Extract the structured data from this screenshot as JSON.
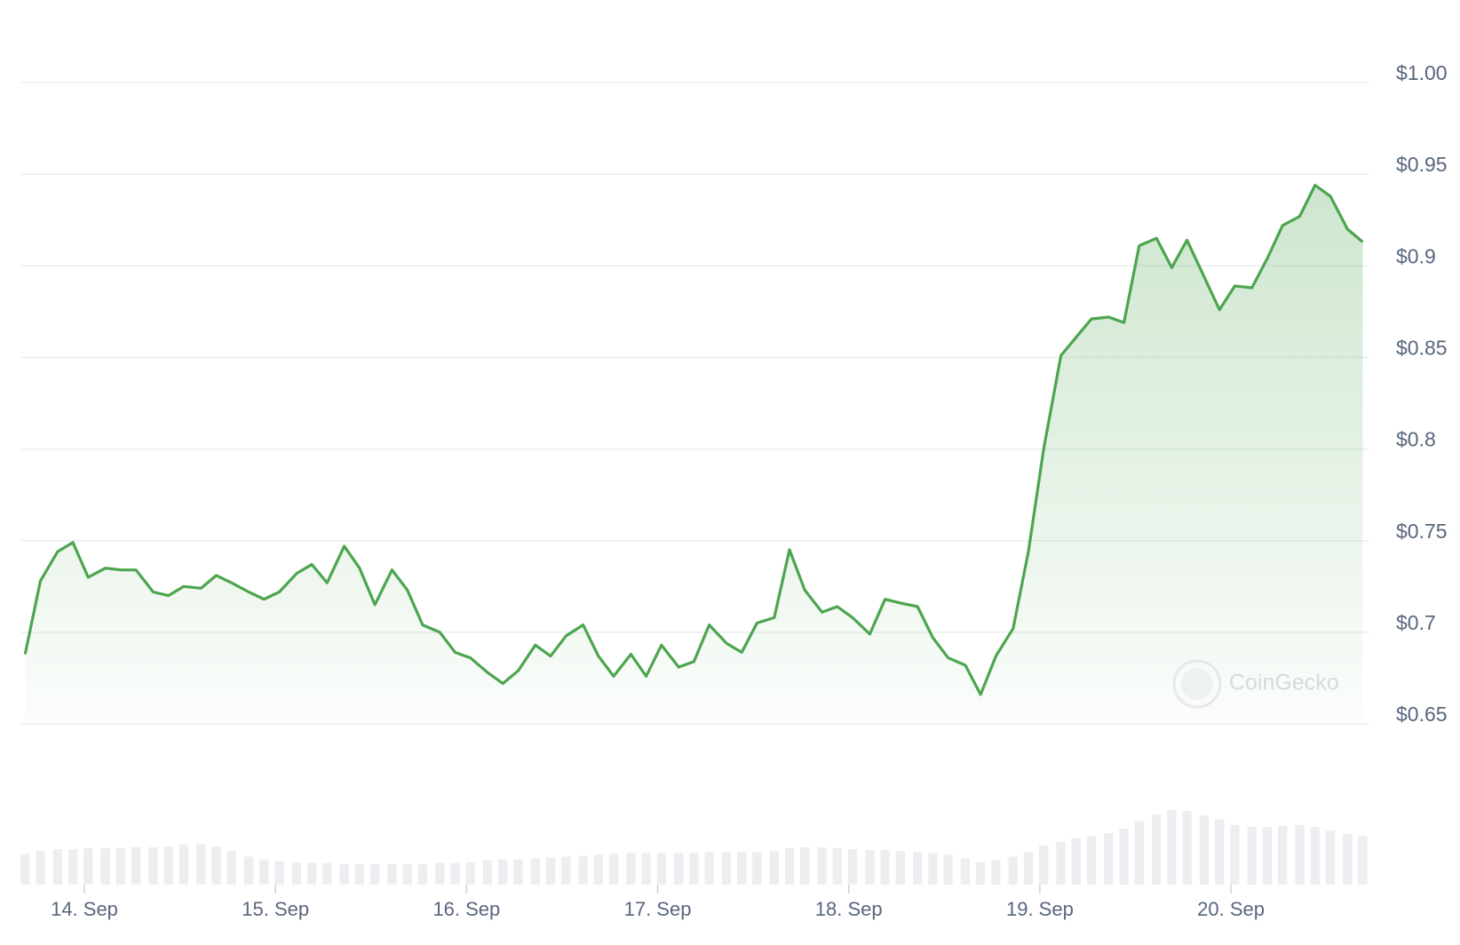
{
  "chart_data": {
    "type": "line",
    "x": [
      13.69,
      13.77,
      13.86,
      13.94,
      14.02,
      14.11,
      14.19,
      14.27,
      14.36,
      14.44,
      14.52,
      14.61,
      14.69,
      14.77,
      14.86,
      14.94,
      15.02,
      15.11,
      15.19,
      15.27,
      15.36,
      15.44,
      15.52,
      15.61,
      15.69,
      15.77,
      15.86,
      15.94,
      16.02,
      16.11,
      16.19,
      16.27,
      16.36,
      16.44,
      16.52,
      16.61,
      16.69,
      16.77,
      16.86,
      16.94,
      17.02,
      17.11,
      17.19,
      17.27,
      17.36,
      17.44,
      17.52,
      17.61,
      17.69,
      17.77,
      17.86,
      17.94,
      18.02,
      18.11,
      18.19,
      18.27,
      18.36,
      18.44,
      18.52,
      18.61,
      18.69,
      18.77,
      18.86,
      18.94,
      19.02,
      19.11,
      19.19,
      19.27,
      19.36,
      19.44,
      19.52,
      19.61,
      19.69,
      19.77,
      19.86,
      19.94,
      20.02,
      20.11,
      20.19,
      20.27,
      20.36,
      20.44,
      20.52,
      20.61,
      20.69
    ],
    "series": [
      {
        "color": "#4ca54f",
        "values": [
          0.688,
          0.728,
          0.744,
          0.749,
          0.73,
          0.735,
          0.734,
          0.734,
          0.722,
          0.72,
          0.725,
          0.724,
          0.731,
          0.727,
          0.722,
          0.718,
          0.722,
          0.732,
          0.737,
          0.727,
          0.747,
          0.735,
          0.715,
          0.734,
          0.723,
          0.704,
          0.7,
          0.689,
          0.686,
          0.678,
          0.672,
          0.679,
          0.693,
          0.687,
          0.698,
          0.704,
          0.687,
          0.676,
          0.688,
          0.676,
          0.693,
          0.681,
          0.684,
          0.704,
          0.694,
          0.689,
          0.705,
          0.708,
          0.745,
          0.723,
          0.711,
          0.714,
          0.708,
          0.699,
          0.718,
          0.716,
          0.714,
          0.697,
          0.686,
          0.682,
          0.666,
          0.687,
          0.702,
          0.744,
          0.8,
          0.851,
          0.861,
          0.871,
          0.872,
          0.869,
          0.911,
          0.915,
          0.899,
          0.914,
          0.894,
          0.876,
          0.889,
          0.888,
          0.904,
          0.922,
          0.927,
          0.944,
          0.938,
          0.92,
          0.913
        ]
      }
    ],
    "volume_values": [
      33,
      36,
      38,
      38,
      39,
      39,
      39,
      40,
      40,
      41,
      43,
      44,
      41,
      36,
      30,
      27,
      25,
      24,
      23,
      23,
      22,
      22,
      22,
      22,
      22,
      22,
      23,
      23,
      24,
      26,
      27,
      27,
      28,
      29,
      30,
      31,
      32,
      33,
      34,
      34,
      34,
      34,
      34,
      35,
      35,
      35,
      35,
      36,
      39,
      40,
      40,
      39,
      38,
      37,
      37,
      36,
      35,
      34,
      32,
      28,
      24,
      26,
      30,
      35,
      42,
      46,
      50,
      52,
      55,
      60,
      68,
      75,
      80,
      79,
      74,
      70,
      64,
      62,
      62,
      63,
      64,
      62,
      58,
      54,
      52
    ],
    "volume_lim": [
      0,
      100
    ],
    "volume_color": "#eceef1",
    "xlim": [
      13.67,
      20.72
    ],
    "xticks": [
      {
        "value": 14,
        "label": "14. Sep"
      },
      {
        "value": 15,
        "label": "15. Sep"
      },
      {
        "value": 16,
        "label": "16. Sep"
      },
      {
        "value": 17,
        "label": "17. Sep"
      },
      {
        "value": 18,
        "label": "18. Sep"
      },
      {
        "value": 19,
        "label": "19. Sep"
      },
      {
        "value": 20,
        "label": "20. Sep"
      }
    ],
    "ylim": [
      0.65,
      1.0
    ],
    "yticks": [
      {
        "value": 1.0,
        "label": "$1.00"
      },
      {
        "value": 0.95,
        "label": "$0.95"
      },
      {
        "value": 0.9,
        "label": "$0.9"
      },
      {
        "value": 0.85,
        "label": "$0.85"
      },
      {
        "value": 0.8,
        "label": "$0.8"
      },
      {
        "value": 0.75,
        "label": "$0.75"
      },
      {
        "value": 0.7,
        "label": "$0.7"
      },
      {
        "value": 0.65,
        "label": "$0.65"
      }
    ],
    "grid": true,
    "area_fill": true,
    "watermark": "CoinGecko"
  }
}
